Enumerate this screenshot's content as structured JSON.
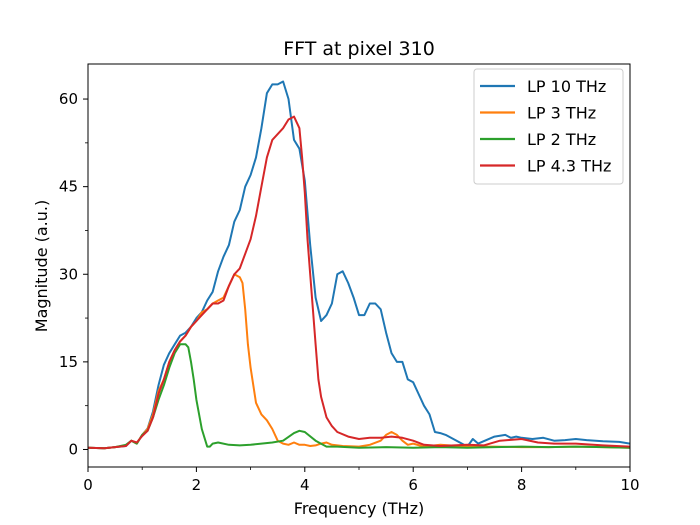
{
  "chart_data": {
    "type": "line",
    "title": "FFT at pixel 310",
    "xlabel": "Frequency (THz)",
    "ylabel": "Magnitude (a.u.)",
    "xlim": [
      0,
      10
    ],
    "ylim": [
      -3,
      66
    ],
    "xticks": [
      0,
      2,
      4,
      6,
      8,
      10
    ],
    "yticks": [
      0,
      15,
      30,
      45,
      60
    ],
    "grid": false,
    "legend_position": "top-right",
    "series": [
      {
        "name": "LP 10 THz",
        "color": "#1f77b4",
        "x": [
          0,
          0.3,
          0.5,
          0.7,
          0.8,
          0.9,
          1.0,
          1.1,
          1.2,
          1.3,
          1.4,
          1.5,
          1.6,
          1.7,
          1.8,
          1.9,
          2.0,
          2.1,
          2.2,
          2.3,
          2.4,
          2.5,
          2.6,
          2.7,
          2.8,
          2.9,
          3.0,
          3.1,
          3.2,
          3.3,
          3.4,
          3.5,
          3.6,
          3.7,
          3.8,
          3.9,
          4.0,
          4.1,
          4.2,
          4.3,
          4.4,
          4.5,
          4.6,
          4.7,
          4.8,
          4.9,
          5.0,
          5.1,
          5.2,
          5.3,
          5.4,
          5.5,
          5.6,
          5.7,
          5.8,
          5.9,
          6.0,
          6.1,
          6.2,
          6.3,
          6.4,
          6.5,
          6.6,
          6.8,
          7.0,
          7.1,
          7.2,
          7.5,
          7.7,
          7.8,
          7.9,
          8.0,
          8.2,
          8.4,
          8.6,
          8.8,
          9.0,
          9.2,
          9.5,
          9.8,
          10.0
        ],
        "y": [
          0.3,
          0.2,
          0.4,
          0.6,
          1.5,
          1.0,
          2.5,
          3.6,
          6.5,
          11.0,
          14.5,
          16.5,
          18.0,
          19.5,
          20.0,
          21.0,
          22.5,
          23.5,
          25.5,
          27.0,
          30.5,
          33.0,
          35.0,
          39.0,
          41.0,
          45.0,
          47.0,
          50.0,
          55.0,
          61.0,
          62.5,
          62.5,
          63.0,
          60.0,
          53.0,
          51.5,
          46.0,
          35.0,
          26.0,
          22.0,
          23.0,
          25.0,
          30.0,
          30.5,
          28.5,
          26.0,
          23.0,
          23.0,
          25.0,
          25.0,
          24.0,
          20.0,
          16.5,
          15.0,
          15.0,
          12.0,
          11.5,
          9.5,
          7.5,
          6.0,
          3.0,
          2.8,
          2.5,
          1.5,
          0.5,
          1.8,
          1.0,
          2.2,
          2.5,
          2.0,
          2.2,
          2.0,
          1.8,
          2.0,
          1.5,
          1.6,
          1.8,
          1.6,
          1.4,
          1.3,
          1.0
        ]
      },
      {
        "name": "LP 3 THz",
        "color": "#ff7f0e",
        "x": [
          0,
          0.3,
          0.5,
          0.7,
          0.8,
          0.9,
          1.0,
          1.1,
          1.2,
          1.3,
          1.4,
          1.5,
          1.6,
          1.7,
          1.8,
          1.9,
          2.0,
          2.1,
          2.2,
          2.3,
          2.4,
          2.5,
          2.6,
          2.7,
          2.8,
          2.85,
          2.9,
          2.95,
          3.0,
          3.1,
          3.2,
          3.3,
          3.4,
          3.5,
          3.6,
          3.7,
          3.8,
          3.9,
          4.0,
          4.1,
          4.2,
          4.3,
          4.4,
          4.5,
          4.7,
          5.0,
          5.2,
          5.4,
          5.5,
          5.6,
          5.7,
          5.8,
          5.9,
          6.0,
          6.2,
          6.5,
          7.0,
          7.5,
          8.0,
          8.5,
          9.0,
          9.5,
          10.0
        ],
        "y": [
          0.3,
          0.2,
          0.4,
          0.7,
          1.5,
          1.0,
          2.5,
          3.5,
          6.0,
          10.0,
          12.0,
          15.0,
          17.0,
          18.5,
          19.5,
          21.0,
          22.0,
          23.5,
          24.0,
          25.0,
          25.5,
          26.0,
          28.0,
          30.0,
          29.5,
          28.5,
          24.0,
          18.0,
          14.0,
          8.0,
          6.0,
          5.0,
          3.5,
          1.5,
          1.0,
          0.8,
          1.2,
          0.8,
          0.8,
          0.6,
          0.7,
          1.0,
          1.2,
          0.8,
          0.6,
          0.5,
          0.8,
          1.5,
          2.5,
          3.0,
          2.5,
          1.5,
          0.8,
          1.0,
          0.5,
          0.8,
          0.5,
          0.5,
          0.4,
          0.4,
          0.5,
          0.4,
          0.3
        ]
      },
      {
        "name": "LP 2 THz",
        "color": "#2ca02c",
        "x": [
          0,
          0.3,
          0.5,
          0.7,
          0.8,
          0.9,
          1.0,
          1.1,
          1.2,
          1.3,
          1.4,
          1.5,
          1.6,
          1.7,
          1.8,
          1.85,
          1.9,
          1.95,
          2.0,
          2.1,
          2.2,
          2.25,
          2.3,
          2.4,
          2.6,
          2.8,
          3.0,
          3.2,
          3.4,
          3.6,
          3.8,
          3.9,
          4.0,
          4.2,
          4.4,
          4.6,
          5.0,
          5.5,
          6.0,
          6.5,
          7.0,
          7.5,
          8.0,
          8.5,
          9.0,
          9.5,
          10.0
        ],
        "y": [
          0.3,
          0.2,
          0.4,
          0.8,
          1.5,
          1.0,
          2.5,
          3.2,
          5.5,
          8.5,
          11.0,
          14.0,
          16.5,
          18.0,
          18.0,
          17.5,
          15.0,
          12.0,
          8.5,
          3.5,
          0.5,
          0.5,
          1.0,
          1.2,
          0.8,
          0.7,
          0.8,
          1.0,
          1.2,
          1.5,
          2.8,
          3.2,
          3.0,
          1.5,
          0.5,
          0.5,
          0.3,
          0.4,
          0.3,
          0.4,
          0.3,
          0.4,
          0.5,
          0.4,
          0.5,
          0.4,
          0.3
        ]
      },
      {
        "name": "LP 4.3 THz",
        "color": "#d62728",
        "x": [
          0,
          0.3,
          0.5,
          0.7,
          0.8,
          0.9,
          1.0,
          1.1,
          1.2,
          1.3,
          1.4,
          1.5,
          1.6,
          1.7,
          1.8,
          1.9,
          2.0,
          2.1,
          2.2,
          2.3,
          2.4,
          2.5,
          2.6,
          2.7,
          2.8,
          2.9,
          3.0,
          3.1,
          3.2,
          3.3,
          3.4,
          3.5,
          3.6,
          3.7,
          3.8,
          3.9,
          3.95,
          4.0,
          4.05,
          4.1,
          4.15,
          4.2,
          4.25,
          4.3,
          4.4,
          4.5,
          4.6,
          4.8,
          5.0,
          5.2,
          5.4,
          5.6,
          5.8,
          6.0,
          6.2,
          6.5,
          7.0,
          7.3,
          7.6,
          8.0,
          8.3,
          8.6,
          9.0,
          9.5,
          10.0
        ],
        "y": [
          0.3,
          0.2,
          0.4,
          0.6,
          1.5,
          1.2,
          2.3,
          3.2,
          5.5,
          9.5,
          12.0,
          15.0,
          17.0,
          18.5,
          19.5,
          21.0,
          22.0,
          23.0,
          24.0,
          25.0,
          25.0,
          25.5,
          28.0,
          30.0,
          31.0,
          33.5,
          36.0,
          40.0,
          45.0,
          50.0,
          53.0,
          54.0,
          55.0,
          56.5,
          57.0,
          55.0,
          50.0,
          44.0,
          36.0,
          30.0,
          24.0,
          18.0,
          12.0,
          9.0,
          5.5,
          4.0,
          3.0,
          2.2,
          1.8,
          2.0,
          2.0,
          2.2,
          2.0,
          1.5,
          0.8,
          0.6,
          0.8,
          0.7,
          1.5,
          1.8,
          1.2,
          1.0,
          1.0,
          0.7,
          0.5
        ]
      }
    ]
  }
}
